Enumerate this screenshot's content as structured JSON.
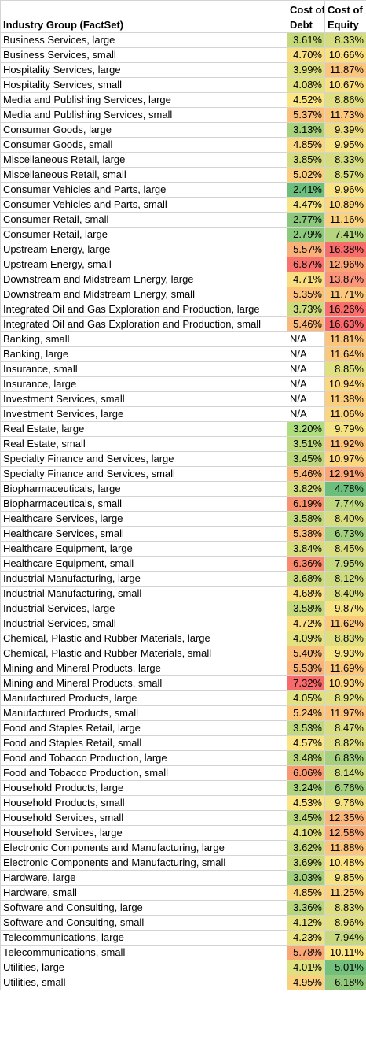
{
  "headers": {
    "industry": "Industry Group (FactSet)",
    "debt_line1": "Cost of",
    "debt_line2": "Debt",
    "equity_line1": "Cost of",
    "equity_line2": "Equity"
  },
  "rows": [
    {
      "name": "Business Services, large",
      "debt": "3.61%",
      "equity": "8.33%",
      "debt_color": "#c6d97a",
      "equity_color": "#d6dd7f"
    },
    {
      "name": "Business Services, small",
      "debt": "4.70%",
      "equity": "10.66%",
      "debt_color": "#f9de81",
      "equity_color": "#fbe082"
    },
    {
      "name": "Hospitality Services, large",
      "debt": "3.99%",
      "equity": "11.87%",
      "debt_color": "#dde07f",
      "equity_color": "#fbc57c"
    },
    {
      "name": "Hospitality Services, small",
      "debt": "4.08%",
      "equity": "10.67%",
      "debt_color": "#e2e180",
      "equity_color": "#fbe082"
    },
    {
      "name": "Media and Publishing Services, large",
      "debt": "4.52%",
      "equity": "8.86%",
      "debt_color": "#fbe683",
      "equity_color": "#e0e081"
    },
    {
      "name": "Media and Publishing Services, small",
      "debt": "5.37%",
      "equity": "11.73%",
      "debt_color": "#fbc07b",
      "equity_color": "#fbc87c"
    },
    {
      "name": "Consumer Goods, large",
      "debt": "3.13%",
      "equity": "9.39%",
      "debt_color": "#a9d27c",
      "equity_color": "#ecdd81"
    },
    {
      "name": "Consumer Goods, small",
      "debt": "4.85%",
      "equity": "9.95%",
      "debt_color": "#fad781",
      "equity_color": "#f8e483"
    },
    {
      "name": "Miscellaneous Retail, large",
      "debt": "3.85%",
      "equity": "8.33%",
      "debt_color": "#d5dc7e",
      "equity_color": "#d6dd7f"
    },
    {
      "name": "Miscellaneous Retail, small",
      "debt": "5.02%",
      "equity": "8.57%",
      "debt_color": "#fbce7e",
      "equity_color": "#dbdf80"
    },
    {
      "name": "Consumer Vehicles and Parts, large",
      "debt": "2.41%",
      "equity": "9.96%",
      "debt_color": "#6bbe7b",
      "equity_color": "#f8e483"
    },
    {
      "name": "Consumer Vehicles and Parts, small",
      "debt": "4.47%",
      "equity": "10.89%",
      "debt_color": "#f7e584",
      "equity_color": "#fbd880"
    },
    {
      "name": "Consumer Retail, small",
      "debt": "2.77%",
      "equity": "11.16%",
      "debt_color": "#8cc87c",
      "equity_color": "#fbd37f"
    },
    {
      "name": "Consumer Retail, large",
      "debt": "2.79%",
      "equity": "7.41%",
      "debt_color": "#8dc97c",
      "equity_color": "#b6d57f"
    },
    {
      "name": "Upstream Energy, large",
      "debt": "5.57%",
      "equity": "16.38%",
      "debt_color": "#f9b179",
      "equity_color": "#f86c6b"
    },
    {
      "name": "Upstream Energy, small",
      "debt": "6.87%",
      "equity": "12.96%",
      "debt_color": "#f8736d",
      "equity_color": "#faa577"
    },
    {
      "name": "Downstream and Midstream Energy, large",
      "debt": "4.71%",
      "equity": "13.87%",
      "debt_color": "#f9dd81",
      "equity_color": "#f9957a"
    },
    {
      "name": "Downstream and Midstream Energy, small",
      "debt": "5.35%",
      "equity": "11.71%",
      "debt_color": "#fbc17b",
      "equity_color": "#fbc87c"
    },
    {
      "name": "Integrated Oil and Gas Exploration and Production, large",
      "debt": "3.73%",
      "equity": "16.26%",
      "debt_color": "#cedb7d",
      "equity_color": "#f86f6c"
    },
    {
      "name": "Integrated Oil and Gas Exploration and Production, small",
      "debt": "5.46%",
      "equity": "16.63%",
      "debt_color": "#fab87a",
      "equity_color": "#f8696b"
    },
    {
      "name": "Banking, small",
      "debt": "N/A",
      "equity": "11.81%",
      "debt_color": "#ffffff",
      "equity_color": "#fbc67c"
    },
    {
      "name": "Banking, large",
      "debt": "N/A",
      "equity": "11.64%",
      "debt_color": "#ffffff",
      "equity_color": "#fbc97d"
    },
    {
      "name": "Insurance, small",
      "debt": "N/A",
      "equity": "8.85%",
      "debt_color": "#ffffff",
      "equity_color": "#e0e081"
    },
    {
      "name": "Insurance, large",
      "debt": "N/A",
      "equity": "10.94%",
      "debt_color": "#ffffff",
      "equity_color": "#fbd780"
    },
    {
      "name": "Investment Services, small",
      "debt": "N/A",
      "equity": "11.38%",
      "debt_color": "#ffffff",
      "equity_color": "#fbcf7e"
    },
    {
      "name": "Investment Services, large",
      "debt": "N/A",
      "equity": "11.06%",
      "debt_color": "#ffffff",
      "equity_color": "#fbd57f"
    },
    {
      "name": "Real Estate, large",
      "debt": "3.20%",
      "equity": "9.79%",
      "debt_color": "#addd7c",
      "equity_color": "#f4e383"
    },
    {
      "name": "Real Estate, small",
      "debt": "3.51%",
      "equity": "11.92%",
      "debt_color": "#c0d87d",
      "equity_color": "#fbc47b"
    },
    {
      "name": "Specialty Finance and Services, large",
      "debt": "3.45%",
      "equity": "10.97%",
      "debt_color": "#bcd67c",
      "equity_color": "#fbd780"
    },
    {
      "name": "Specialty Finance and Services, small",
      "debt": "5.46%",
      "equity": "12.91%",
      "debt_color": "#fab87a",
      "equity_color": "#faa677"
    },
    {
      "name": "Biopharmaceuticals, large",
      "debt": "3.82%",
      "equity": "4.78%",
      "debt_color": "#d3dc7e",
      "equity_color": "#6bbe7b"
    },
    {
      "name": "Biopharmaceuticals, small",
      "debt": "6.19%",
      "equity": "7.74%",
      "debt_color": "#f9936f",
      "equity_color": "#c0d87f"
    },
    {
      "name": "Healthcare Services, large",
      "debt": "3.58%",
      "equity": "8.40%",
      "debt_color": "#c4d97d",
      "equity_color": "#d8de80"
    },
    {
      "name": "Healthcare Services, small",
      "debt": "5.38%",
      "equity": "6.73%",
      "debt_color": "#fabf7b",
      "equity_color": "#a3cf7e"
    },
    {
      "name": "Healthcare Equipment, large",
      "debt": "3.84%",
      "equity": "8.45%",
      "debt_color": "#d4dc7e",
      "equity_color": "#d9de80"
    },
    {
      "name": "Healthcare Equipment, small",
      "debt": "6.36%",
      "equity": "7.95%",
      "debt_color": "#f98a6e",
      "equity_color": "#c6d97f"
    },
    {
      "name": "Industrial Manufacturing, large",
      "debt": "3.68%",
      "equity": "8.12%",
      "debt_color": "#cbda7d",
      "equity_color": "#cfdb80"
    },
    {
      "name": "Industrial Manufacturing, small",
      "debt": "4.68%",
      "equity": "8.40%",
      "debt_color": "#f9df82",
      "equity_color": "#d8de80"
    },
    {
      "name": "Industrial Services, large",
      "debt": "3.58%",
      "equity": "9.87%",
      "debt_color": "#c4d97d",
      "equity_color": "#f6e383"
    },
    {
      "name": "Industrial Services, small",
      "debt": "4.72%",
      "equity": "11.62%",
      "debt_color": "#f9dd81",
      "equity_color": "#fbca7d"
    },
    {
      "name": "Chemical, Plastic and Rubber Materials, large",
      "debt": "4.09%",
      "equity": "8.83%",
      "debt_color": "#e3e180",
      "equity_color": "#dfdf81"
    },
    {
      "name": "Chemical, Plastic and Rubber Materials, small",
      "debt": "5.40%",
      "equity": "9.93%",
      "debt_color": "#fabe7b",
      "equity_color": "#f7e483"
    },
    {
      "name": "Mining and Mineral Products, large",
      "debt": "5.53%",
      "equity": "11.69%",
      "debt_color": "#fab37a",
      "equity_color": "#fbc87c"
    },
    {
      "name": "Mining and Mineral Products, small",
      "debt": "7.32%",
      "equity": "10.93%",
      "debt_color": "#f8696b",
      "equity_color": "#fbd780"
    },
    {
      "name": "Manufactured Products, large",
      "debt": "4.05%",
      "equity": "8.92%",
      "debt_color": "#e1e180",
      "equity_color": "#e2e081"
    },
    {
      "name": "Manufactured Products, small",
      "debt": "5.24%",
      "equity": "11.97%",
      "debt_color": "#fbc67c",
      "equity_color": "#fbc37b"
    },
    {
      "name": "Food and Staples Retail, large",
      "debt": "3.53%",
      "equity": "8.47%",
      "debt_color": "#c1d87d",
      "equity_color": "#d9de80"
    },
    {
      "name": "Food and Staples Retail, small",
      "debt": "4.57%",
      "equity": "8.82%",
      "debt_color": "#fbe483",
      "equity_color": "#dfdf81"
    },
    {
      "name": "Food and Tobacco Production, large",
      "debt": "3.48%",
      "equity": "6.83%",
      "debt_color": "#bed77c",
      "equity_color": "#a6d07e"
    },
    {
      "name": "Food and Tobacco Production, small",
      "debt": "6.06%",
      "equity": "8.14%",
      "debt_color": "#f99970",
      "equity_color": "#d0dc80"
    },
    {
      "name": "Household Products, large",
      "debt": "3.24%",
      "equity": "6.76%",
      "debt_color": "#b0d47c",
      "equity_color": "#a4cf7e"
    },
    {
      "name": "Household Products, small",
      "debt": "4.53%",
      "equity": "9.76%",
      "debt_color": "#fbe683",
      "equity_color": "#f3e283"
    },
    {
      "name": "Household Services, small",
      "debt": "3.45%",
      "equity": "12.35%",
      "debt_color": "#bcd67c",
      "equity_color": "#fbb77a"
    },
    {
      "name": "Household Services, large",
      "debt": "4.10%",
      "equity": "12.58%",
      "debt_color": "#e4e180",
      "equity_color": "#faae79"
    },
    {
      "name": "Electronic Components and Manufacturing, large",
      "debt": "3.62%",
      "equity": "11.88%",
      "debt_color": "#c7d97d",
      "equity_color": "#fbc57c"
    },
    {
      "name": "Electronic Components and Manufacturing, small",
      "debt": "3.69%",
      "equity": "10.48%",
      "debt_color": "#cbda7d",
      "equity_color": "#fce383"
    },
    {
      "name": "Hardware, large",
      "debt": "3.03%",
      "equity": "9.85%",
      "debt_color": "#a4d07c",
      "equity_color": "#f5e383"
    },
    {
      "name": "Hardware, small",
      "debt": "4.85%",
      "equity": "11.25%",
      "debt_color": "#fad781",
      "equity_color": "#fbd27f"
    },
    {
      "name": "Software and Consulting, large",
      "debt": "3.36%",
      "equity": "8.83%",
      "debt_color": "#b7d67c",
      "equity_color": "#dfdf81"
    },
    {
      "name": "Software and Consulting, small",
      "debt": "4.12%",
      "equity": "8.96%",
      "debt_color": "#e5e180",
      "equity_color": "#e3e081"
    },
    {
      "name": "Telecommunications, large",
      "debt": "4.23%",
      "equity": "7.94%",
      "debt_color": "#ebe381",
      "equity_color": "#c6d97f"
    },
    {
      "name": "Telecommunications, small",
      "debt": "5.78%",
      "equity": "10.11%",
      "debt_color": "#faa776",
      "equity_color": "#fde683"
    },
    {
      "name": "Utilities, large",
      "debt": "4.01%",
      "equity": "5.01%",
      "debt_color": "#dfe080",
      "equity_color": "#71c07c"
    },
    {
      "name": "Utilities, small",
      "debt": "4.95%",
      "equity": "6.18%",
      "debt_color": "#fbd180",
      "equity_color": "#92c97d"
    }
  ]
}
